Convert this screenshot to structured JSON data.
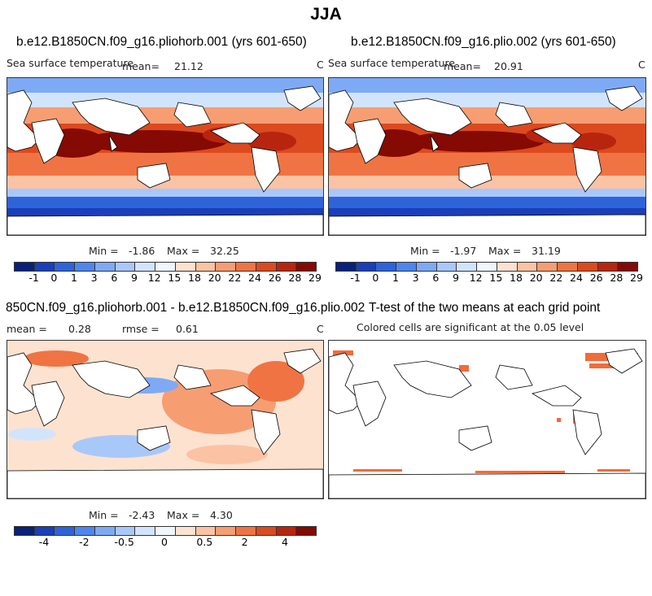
{
  "title": "JJA",
  "panels": [
    {
      "title": "b.e12.B1850CN.f09_g16.pliohorb.001 (yrs 601-650)",
      "variable": "Sea surface temperature",
      "mean_label": "mean=",
      "mean": "21.12",
      "units": "C",
      "min_label": "Min =",
      "min": "-1.86",
      "max_label": "Max =",
      "max": "32.25"
    },
    {
      "title": "b.e12.B1850CN.f09_g16.plio.002 (yrs 601-650)",
      "variable": "Sea surface temperature",
      "mean_label": "mean=",
      "mean": "20.91",
      "units": "C",
      "min_label": "Min =",
      "min": "-1.97",
      "max_label": "Max =",
      "max": "31.19"
    },
    {
      "title": "850CN.f09_g16.pliohorb.001 - b.e12.B1850CN.f09_g16.plio.002",
      "mean_label": "mean =",
      "mean": "0.28",
      "rmse_label": "rmse =",
      "rmse": "0.61",
      "units": "C",
      "min_label": "Min =",
      "min": "-2.43",
      "max_label": "Max =",
      "max": "4.30"
    },
    {
      "title": "T-test of the two means at each grid point",
      "subtitle": "Colored cells are significant at the 0.05 level"
    }
  ],
  "chart_data": [
    {
      "type": "heatmap",
      "panel": "top-left",
      "colorbar_ticks": [
        "-1",
        "0",
        "1",
        "3",
        "6",
        "9",
        "12",
        "15",
        "18",
        "20",
        "22",
        "24",
        "26",
        "28",
        "29"
      ],
      "colors": [
        "#08217a",
        "#1a3fb8",
        "#2e63dc",
        "#4d86ee",
        "#7eaaf5",
        "#a9c8fa",
        "#d2e4fc",
        "#f1f6fe",
        "#fde2d0",
        "#fbc3a3",
        "#f79d72",
        "#f07443",
        "#dc4a1f",
        "#b8250e",
        "#840a03"
      ],
      "range": [
        -1.86,
        32.25
      ]
    },
    {
      "type": "heatmap",
      "panel": "top-right",
      "colorbar_ticks": [
        "-1",
        "0",
        "1",
        "3",
        "6",
        "9",
        "12",
        "15",
        "18",
        "20",
        "22",
        "24",
        "26",
        "28",
        "29"
      ],
      "range": [
        -1.97,
        31.19
      ]
    },
    {
      "type": "heatmap",
      "panel": "bottom-left",
      "colorbar_ticks": [
        "-4",
        "-2",
        "-0.5",
        "0",
        "0.5",
        "2",
        "4"
      ],
      "colors": [
        "#08217a",
        "#1a3fb8",
        "#2e63dc",
        "#4d86ee",
        "#7eaaf5",
        "#a9c8fa",
        "#d2e4fc",
        "#f1f6fe",
        "#fde2d0",
        "#fbc3a3",
        "#f79d72",
        "#f07443",
        "#dc4a1f",
        "#b8250e",
        "#840a03"
      ],
      "range": [
        -2.43,
        4.3
      ]
    },
    {
      "type": "heatmap",
      "panel": "bottom-right",
      "significance_color": "#f26b3a"
    }
  ]
}
